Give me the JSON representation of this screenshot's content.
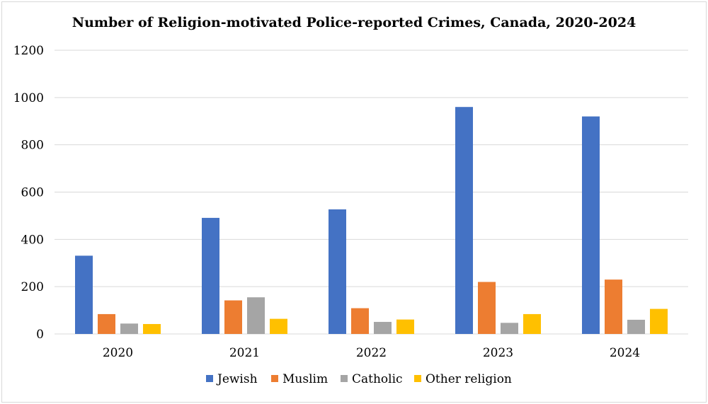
{
  "chart_data": {
    "type": "bar",
    "title": "Number of Religion-motivated Police-reported Crimes, Canada, 2020-2024",
    "xlabel": "",
    "ylabel": "",
    "ylim": [
      0,
      1200
    ],
    "yticks": [
      0,
      200,
      400,
      600,
      800,
      1000,
      1200
    ],
    "grid": true,
    "legend_position": "bottom",
    "categories": [
      "2020",
      "2021",
      "2022",
      "2023",
      "2024"
    ],
    "series": [
      {
        "name": "Jewish",
        "color": "#4472c4",
        "values": [
          331,
          491,
          527,
          960,
          920
        ]
      },
      {
        "name": "Muslim",
        "color": "#ed7d31",
        "values": [
          84,
          142,
          109,
          220,
          230
        ]
      },
      {
        "name": "Catholic",
        "color": "#a5a5a5",
        "values": [
          44,
          155,
          51,
          47,
          60
        ]
      },
      {
        "name": "Other religion",
        "color": "#ffc000",
        "values": [
          42,
          64,
          61,
          84,
          106
        ]
      }
    ]
  }
}
